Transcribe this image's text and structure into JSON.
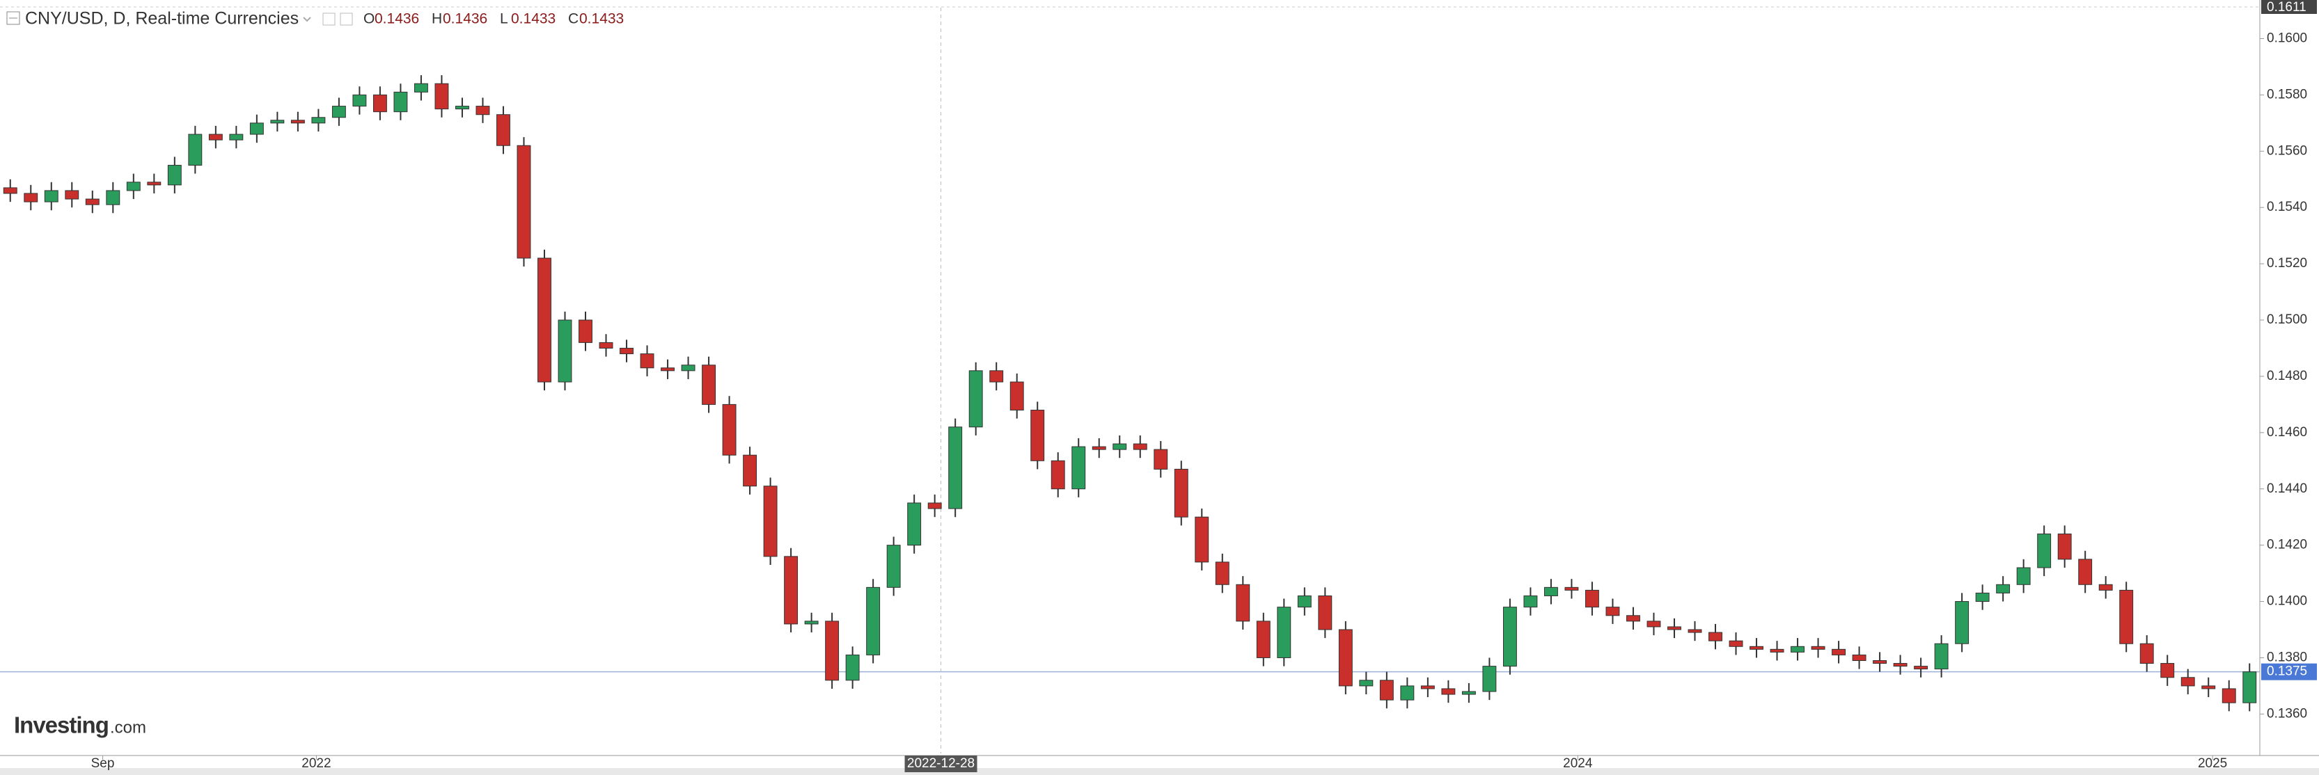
{
  "chart_data": {
    "type": "candlestick",
    "title": "CNY/USD, D, Real-time Currencies",
    "ohlc_legend": [
      {
        "label": "O",
        "value": 0.1436
      },
      {
        "label": "H",
        "value": 0.1436
      },
      {
        "label": "L",
        "value": 0.1433
      },
      {
        "label": "C",
        "value": 0.1433
      }
    ],
    "brand": {
      "name": "Investing",
      "suffix": ".com"
    },
    "up_color": "#2a9d5c",
    "down_color": "#c9302c",
    "ylim": [
      0.1346,
      0.1611
    ],
    "yticks": [
      {
        "value": 0.136,
        "label": "0.1360"
      },
      {
        "value": 0.138,
        "label": "0.1380"
      },
      {
        "value": 0.14,
        "label": "0.1400"
      },
      {
        "value": 0.142,
        "label": "0.1420"
      },
      {
        "value": 0.144,
        "label": "0.1440"
      },
      {
        "value": 0.146,
        "label": "0.1460"
      },
      {
        "value": 0.148,
        "label": "0.1480"
      },
      {
        "value": 0.15,
        "label": "0.1500"
      },
      {
        "value": 0.152,
        "label": "0.1520"
      },
      {
        "value": 0.154,
        "label": "0.1540"
      },
      {
        "value": 0.156,
        "label": "0.1560"
      },
      {
        "value": 0.158,
        "label": "0.1580"
      },
      {
        "value": 0.16,
        "label": "0.1600"
      }
    ],
    "high_marker": {
      "value": 0.1611,
      "label": "0.1611"
    },
    "last_price": {
      "value": 0.1375,
      "label": "0.1375"
    },
    "xticks": [
      {
        "value": 4.5,
        "label": "Sep"
      },
      {
        "value": 14.9,
        "label": "2022"
      },
      {
        "value": 76.3,
        "label": "2024"
      },
      {
        "value": 107.2,
        "label": "2025"
      }
    ],
    "crosshair": {
      "value": 45.3,
      "label": "2022-12-28"
    },
    "open": [
      0.1547,
      0.1545,
      0.1542,
      0.1546,
      0.1543,
      0.1541,
      0.1546,
      0.1549,
      0.1548,
      0.1555,
      0.1566,
      0.1564,
      0.1566,
      0.157,
      0.1571,
      0.157,
      0.1572,
      0.1576,
      0.158,
      0.1574,
      0.1581,
      0.1584,
      0.1575,
      0.1576,
      0.1573,
      0.1562,
      0.1522,
      0.1478,
      0.15,
      0.1492,
      0.149,
      0.1488,
      0.1483,
      0.1482,
      0.1484,
      0.147,
      0.1452,
      0.1441,
      0.1416,
      0.1392,
      0.1393,
      0.1372,
      0.1381,
      0.1405,
      0.142,
      0.1435,
      0.1433,
      0.1462,
      0.1482,
      0.1478,
      0.1468,
      0.145,
      0.144,
      0.1455,
      0.1454,
      0.1456,
      0.1454,
      0.1447,
      0.143,
      0.1414,
      0.1406,
      0.1393,
      0.138,
      0.1398,
      0.1402,
      0.139,
      0.137,
      0.1372,
      0.1365,
      0.137,
      0.1369,
      0.1367,
      0.1368,
      0.1377,
      0.1398,
      0.1402,
      0.1405,
      0.1404,
      0.1398,
      0.1395,
      0.1393,
      0.1391,
      0.139,
      0.1389,
      0.1386,
      0.1384,
      0.1383,
      0.1382,
      0.1384,
      0.1383,
      0.1381,
      0.1379,
      0.1378,
      0.1377,
      0.1376,
      0.1385,
      0.14,
      0.1403,
      0.1406,
      0.1412,
      0.1424,
      0.1415,
      0.1406,
      0.1404,
      0.1385,
      0.1378,
      0.1373,
      0.137,
      0.1369,
      0.1364
    ],
    "high": [
      0.155,
      0.1548,
      0.1549,
      0.1549,
      0.1546,
      0.1549,
      0.1552,
      0.1552,
      0.1558,
      0.1569,
      0.1569,
      0.1569,
      0.1573,
      0.1574,
      0.1574,
      0.1575,
      0.1579,
      0.1583,
      0.1583,
      0.1584,
      0.1587,
      0.1587,
      0.1579,
      0.1579,
      0.1576,
      0.1565,
      0.1525,
      0.1503,
      0.1503,
      0.1495,
      0.1493,
      0.1491,
      0.1486,
      0.1487,
      0.1487,
      0.1473,
      0.1455,
      0.1444,
      0.1419,
      0.1396,
      0.1396,
      0.1384,
      0.1408,
      0.1423,
      0.1438,
      0.1438,
      0.1465,
      0.1485,
      0.1485,
      0.1481,
      0.1471,
      0.1453,
      0.1458,
      0.1458,
      0.1459,
      0.1459,
      0.1457,
      0.145,
      0.1433,
      0.1417,
      0.1409,
      0.1396,
      0.1401,
      0.1405,
      0.1405,
      0.1393,
      0.1375,
      0.1375,
      0.1373,
      0.1373,
      0.1372,
      0.1371,
      0.138,
      0.1401,
      0.1405,
      0.1408,
      0.1408,
      0.1407,
      0.1401,
      0.1398,
      0.1396,
      0.1394,
      0.1393,
      0.1392,
      0.1389,
      0.1387,
      0.1386,
      0.1387,
      0.1387,
      0.1386,
      0.1384,
      0.1382,
      0.1381,
      0.138,
      0.1388,
      0.1403,
      0.1406,
      0.1409,
      0.1415,
      0.1427,
      0.1427,
      0.1418,
      0.1409,
      0.1407,
      0.1388,
      0.1381,
      0.1376,
      0.1373,
      0.1372,
      0.1378
    ],
    "low": [
      0.1542,
      0.1539,
      0.1539,
      0.154,
      0.1538,
      0.1538,
      0.1543,
      0.1545,
      0.1545,
      0.1552,
      0.1561,
      0.1561,
      0.1563,
      0.1567,
      0.1567,
      0.1567,
      0.1569,
      0.1573,
      0.1571,
      0.1571,
      0.1578,
      0.1572,
      0.1572,
      0.157,
      0.1559,
      0.1519,
      0.1475,
      0.1475,
      0.1489,
      0.1487,
      0.1485,
      0.148,
      0.1479,
      0.1479,
      0.1467,
      0.1449,
      0.1438,
      0.1413,
      0.1389,
      0.1389,
      0.1369,
      0.1369,
      0.1378,
      0.1402,
      0.1417,
      0.143,
      0.143,
      0.1459,
      0.1475,
      0.1465,
      0.1447,
      0.1437,
      0.1437,
      0.1451,
      0.1451,
      0.1451,
      0.1444,
      0.1427,
      0.1411,
      0.1403,
      0.139,
      0.1377,
      0.1377,
      0.1395,
      0.1387,
      0.1367,
      0.1367,
      0.1362,
      0.1362,
      0.1366,
      0.1364,
      0.1364,
      0.1365,
      0.1374,
      0.1395,
      0.1399,
      0.1401,
      0.1395,
      0.1392,
      0.139,
      0.1388,
      0.1387,
      0.1386,
      0.1383,
      0.1381,
      0.138,
      0.1379,
      0.1379,
      0.138,
      0.1378,
      0.1376,
      0.1375,
      0.1374,
      0.1373,
      0.1373,
      0.1382,
      0.1397,
      0.14,
      0.1403,
      0.1409,
      0.1412,
      0.1403,
      0.1401,
      0.1382,
      0.1375,
      0.137,
      0.1367,
      0.1366,
      0.1361,
      0.1361
    ],
    "close": [
      0.1545,
      0.1542,
      0.1546,
      0.1543,
      0.1541,
      0.1546,
      0.1549,
      0.1548,
      0.1555,
      0.1566,
      0.1564,
      0.1566,
      0.157,
      0.1571,
      0.157,
      0.1572,
      0.1576,
      0.158,
      0.1574,
      0.1581,
      0.1584,
      0.1575,
      0.1576,
      0.1573,
      0.1562,
      0.1522,
      0.1478,
      0.15,
      0.1492,
      0.149,
      0.1488,
      0.1483,
      0.1482,
      0.1484,
      0.147,
      0.1452,
      0.1441,
      0.1416,
      0.1392,
      0.1393,
      0.1372,
      0.1381,
      0.1405,
      0.142,
      0.1435,
      0.1433,
      0.1462,
      0.1482,
      0.1478,
      0.1468,
      0.145,
      0.144,
      0.1455,
      0.1454,
      0.1456,
      0.1454,
      0.1447,
      0.143,
      0.1414,
      0.1406,
      0.1393,
      0.138,
      0.1398,
      0.1402,
      0.139,
      0.137,
      0.1372,
      0.1365,
      0.137,
      0.1369,
      0.1367,
      0.1368,
      0.1377,
      0.1398,
      0.1402,
      0.1405,
      0.1404,
      0.1398,
      0.1395,
      0.1393,
      0.1391,
      0.139,
      0.1389,
      0.1386,
      0.1384,
      0.1383,
      0.1382,
      0.1384,
      0.1383,
      0.1381,
      0.1379,
      0.1378,
      0.1377,
      0.1376,
      0.1385,
      0.14,
      0.1403,
      0.1406,
      0.1412,
      0.1424,
      0.1415,
      0.1406,
      0.1404,
      0.1385,
      0.1378,
      0.1373,
      0.137,
      0.1369,
      0.1364,
      0.1375
    ]
  }
}
